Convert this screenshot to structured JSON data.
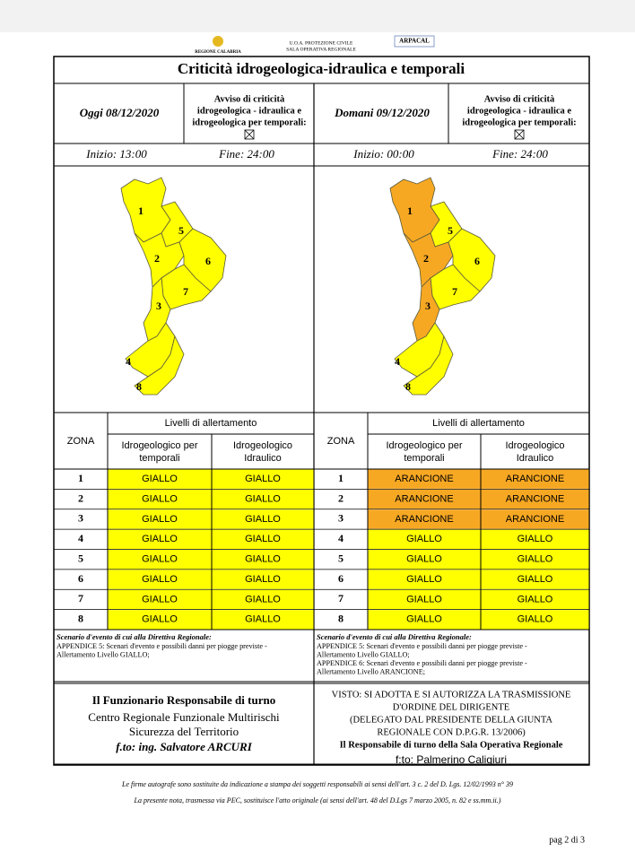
{
  "header": {
    "region": "REGIONE CALABRIA",
    "office": [
      "U.O.A. PROTEZIONE CIVILE",
      "SALA OPERATIVA REGIONALE"
    ],
    "agency": "ARPACAL"
  },
  "title": "Criticità idrogeologica-idraulica e temporali",
  "level_colors": {
    "GIALLO": "#ffff00",
    "ARANCIONE": "#f7a823"
  },
  "days": [
    {
      "date": "Oggi 08/12/2020",
      "notice": [
        "Avviso di criticità",
        "idrogeologica - idraulica e",
        "idrogeologica per temporali:"
      ],
      "start": "Inizio: 13:00",
      "end": "Fine: 24:00",
      "map_labels": [
        "1",
        "5",
        "2",
        "6",
        "7",
        "3",
        "4",
        "8"
      ],
      "table": {
        "zone_header": "ZONA",
        "levels_header": "Livelli di allertamento",
        "columns": [
          [
            "Idrogeologico per",
            "temporali"
          ],
          [
            "Idrogeologico",
            "Idraulico"
          ]
        ],
        "rows": [
          [
            "1",
            "GIALLO",
            "GIALLO"
          ],
          [
            "2",
            "GIALLO",
            "GIALLO"
          ],
          [
            "3",
            "GIALLO",
            "GIALLO"
          ],
          [
            "4",
            "GIALLO",
            "GIALLO"
          ],
          [
            "5",
            "GIALLO",
            "GIALLO"
          ],
          [
            "6",
            "GIALLO",
            "GIALLO"
          ],
          [
            "7",
            "GIALLO",
            "GIALLO"
          ],
          [
            "8",
            "GIALLO",
            "GIALLO"
          ]
        ]
      },
      "scenario": {
        "heading": "Scenario d'evento di cui alla Direttiva Regionale:",
        "lines": [
          "APPENDICE 5: Scenari d'evento e possibili danni per piogge previste -",
          "Allertamento Livello GIALLO;"
        ]
      }
    },
    {
      "date": "Domani 09/12/2020",
      "notice": [
        "Avviso di criticità",
        "idrogeologica - idraulica e",
        "idrogeologica per temporali:"
      ],
      "start": "Inizio: 00:00",
      "end": "Fine: 24:00",
      "map_labels": [
        "1",
        "5",
        "2",
        "6",
        "7",
        "3",
        "4",
        "8"
      ],
      "table": {
        "zone_header": "ZONA",
        "levels_header": "Livelli di allertamento",
        "columns": [
          [
            "Idrogeologico per",
            "temporali"
          ],
          [
            "Idrogeologico",
            "Idraulico"
          ]
        ],
        "rows": [
          [
            "1",
            "ARANCIONE",
            "ARANCIONE"
          ],
          [
            "2",
            "ARANCIONE",
            "ARANCIONE"
          ],
          [
            "3",
            "ARANCIONE",
            "ARANCIONE"
          ],
          [
            "4",
            "GIALLO",
            "GIALLO"
          ],
          [
            "5",
            "GIALLO",
            "GIALLO"
          ],
          [
            "6",
            "GIALLO",
            "GIALLO"
          ],
          [
            "7",
            "GIALLO",
            "GIALLO"
          ],
          [
            "8",
            "GIALLO",
            "GIALLO"
          ]
        ]
      },
      "scenario": {
        "heading": "Scenario d'evento di cui alla Direttiva Regionale:",
        "lines": [
          "APPENDICE 5: Scenari d'evento e possibili danni per piogge previste -",
          "Allertamento Livello GIALLO;",
          "APPENDICE 6: Scenari d'evento e possibili danni per piogge previste -",
          "Allertamento Livello ARANCIONE;"
        ]
      }
    }
  ],
  "signature": [
    "Il Funzionario Responsabile di turno",
    "Centro Regionale Funzionale Multirischi",
    "Sicurezza del Territorio",
    "f.to: ing. Salvatore ARCURI"
  ],
  "approval": [
    "VISTO: SI ADOTTA E SI AUTORIZZA LA TRASMISSIONE",
    "D'ORDINE DEL DIRIGENTE",
    "(DELEGATO DAL PRESIDENTE DELLA GIUNTA",
    "REGIONALE CON D.P.G.R. 13/2006)",
    "Il Responsabile di turno della Sala Operativa Regionale",
    "f:to: Palmerino Caligiuri"
  ],
  "footer": {
    "notes": [
      "Le firme autografe sono sostituite da indicazione a stampa dei soggetti responsabili ai sensi dell'art. 3 c. 2 del D. Lgs. 12/02/1993 n° 39",
      "La presente nota, trasmessa via PEC, sostituisce l'atto originale (ai sensi dell'art. 48 del D.Lgs 7 marzo 2005, n. 82 e ss.mm.ii.)"
    ],
    "page": "pag 2 di 3"
  }
}
